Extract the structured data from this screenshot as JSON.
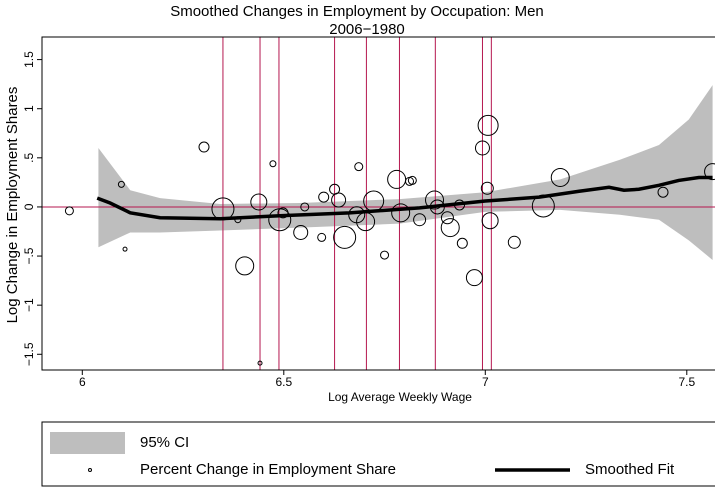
{
  "chart_data": {
    "type": "scatter",
    "title": "Smoothed Changes in Employment by Occupation: Men",
    "subtitle": "2006−1980",
    "x_label": "Log Average Weekly Wage",
    "y_label": "Log Change in Employment Shares",
    "xlim": [
      5.9,
      7.57
    ],
    "ylim": [
      -1.66,
      1.73
    ],
    "xticks": [
      6,
      6.5,
      7,
      7.5
    ],
    "yticks": [
      {
        "value": -1.5,
        "label": "−1.5"
      },
      {
        "value": -1,
        "label": "−1"
      },
      {
        "value": -0.5,
        "label": "−.5"
      },
      0,
      {
        "value": 0.5,
        "label": ".5"
      },
      1,
      1.5
    ],
    "series": [
      {
        "name": "95% CI",
        "type": "band",
        "color": "#bebebe",
        "x": [
          6.04,
          6.119,
          6.193,
          6.342,
          6.54,
          6.787,
          7.0,
          7.186,
          7.334,
          7.431,
          7.505,
          7.564
        ],
        "lower": [
          -0.41,
          -0.26,
          -0.26,
          -0.24,
          -0.21,
          -0.17,
          -0.05,
          -0.03,
          -0.08,
          -0.13,
          -0.34,
          -0.54
        ],
        "upper": [
          0.6,
          0.17,
          0.09,
          0.03,
          0.04,
          0.08,
          0.15,
          0.28,
          0.48,
          0.63,
          0.89,
          1.24
        ]
      },
      {
        "name": "Percent Change in Employment Share",
        "type": "scatter",
        "color": "#000000",
        "x": [
          5.968,
          6.097,
          6.106,
          6.302,
          6.349,
          6.386,
          6.403,
          6.438,
          6.473,
          6.49,
          6.498,
          6.441,
          6.542,
          6.552,
          6.594,
          6.599,
          6.626,
          6.636,
          6.651,
          6.681,
          6.686,
          6.703,
          6.723,
          6.75,
          6.78,
          6.79,
          6.812,
          6.819,
          6.837,
          6.874,
          6.881,
          6.906,
          6.913,
          6.936,
          6.943,
          6.973,
          6.993,
          7.007,
          7.005,
          7.012,
          7.072,
          7.144,
          7.186,
          7.441,
          7.564
        ],
        "values": [
          -0.04,
          0.23,
          -0.43,
          0.61,
          -0.02,
          -0.13,
          -0.6,
          0.05,
          0.44,
          -0.13,
          -0.06,
          -1.59,
          -0.26,
          0.0,
          -0.31,
          0.1,
          0.18,
          0.07,
          -0.31,
          -0.08,
          0.41,
          -0.15,
          0.06,
          -0.49,
          0.28,
          -0.06,
          0.26,
          0.27,
          -0.13,
          0.07,
          0.0,
          -0.11,
          -0.21,
          0.02,
          -0.37,
          -0.72,
          0.6,
          0.83,
          0.19,
          -0.14,
          -0.36,
          0.01,
          0.3,
          0.15,
          0.36
        ],
        "sizes": [
          3,
          2,
          1,
          4,
          10,
          2,
          8,
          7,
          2,
          10,
          4,
          1,
          6,
          3,
          3,
          4,
          4,
          6,
          10,
          7,
          3,
          8,
          9,
          3,
          8,
          8,
          3,
          3,
          5,
          8,
          6,
          5,
          8,
          4,
          4,
          7,
          6,
          9,
          5,
          7,
          5,
          10,
          8,
          4,
          7
        ]
      },
      {
        "name": "Smoothed Fit",
        "type": "line",
        "color": "#000000",
        "x": [
          6.037,
          6.069,
          6.119,
          6.193,
          6.342,
          6.49,
          6.663,
          6.837,
          7.0,
          7.134,
          7.233,
          7.307,
          7.344,
          7.381,
          7.431,
          7.48,
          7.53,
          7.564
        ],
        "values": [
          0.09,
          0.04,
          -0.06,
          -0.11,
          -0.12,
          -0.09,
          -0.06,
          -0.01,
          0.06,
          0.1,
          0.16,
          0.2,
          0.17,
          0.18,
          0.22,
          0.27,
          0.3,
          0.3
        ]
      }
    ],
    "reference_lines": {
      "color": "#b5174f",
      "x": [
        6.349,
        6.441,
        6.488,
        6.626,
        6.705,
        6.787,
        6.876,
        6.993,
        7.015
      ],
      "y": [
        0
      ]
    }
  }
}
